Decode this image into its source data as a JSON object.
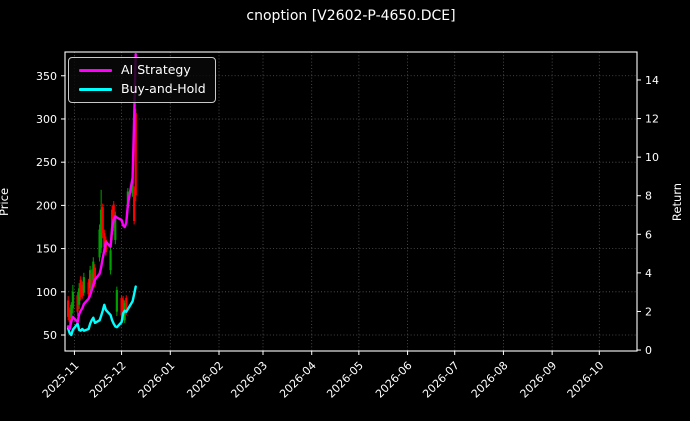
{
  "window": {
    "title": "cnoption [V2602-P-4650.DCE]"
  },
  "chart_data": {
    "type": "candlestick",
    "title": "cnoption [V2602-P-4650.DCE]",
    "background": "#000000",
    "text_color": "#ffffff",
    "grid": {
      "shown": true,
      "style": "dotted",
      "color": "#ffffff",
      "opacity": 0.35
    },
    "legend": {
      "position": "upper-left",
      "items": [
        {
          "label": "AI Strategy",
          "color": "#ff00ff"
        },
        {
          "label": "Buy-and-Hold",
          "color": "#00ffff"
        }
      ]
    },
    "left_axis": {
      "label": "Price",
      "ticks": [
        50,
        100,
        150,
        200,
        250,
        300,
        350
      ],
      "range": [
        31.5,
        377.5
      ]
    },
    "right_axis": {
      "label": "Return",
      "ticks": [
        0,
        2,
        4,
        6,
        8,
        10,
        12,
        14
      ],
      "range": [
        -0.05,
        15.45
      ]
    },
    "x_axis": {
      "rotation": 45,
      "range": [
        "2025-10-26",
        "2026-10-25"
      ],
      "tick_dates": [
        "2025-11-01",
        "2025-12-01",
        "2026-01-01",
        "2026-02-01",
        "2026-03-01",
        "2026-04-01",
        "2026-05-01",
        "2026-06-01",
        "2026-07-01",
        "2026-08-01",
        "2026-09-01",
        "2026-10-01"
      ],
      "tick_labels": [
        "2025-11",
        "2025-12",
        "2026-01",
        "2026-02",
        "2026-03",
        "2026-04",
        "2026-05",
        "2026-06",
        "2026-07",
        "2026-08",
        "2026-09",
        "2026-10"
      ]
    },
    "candles": {
      "up_color": "#ff0000",
      "down_color": "#00a000",
      "dates": [
        "2025-10-28",
        "2025-10-29",
        "2025-10-30",
        "2025-10-31",
        "2025-11-03",
        "2025-11-04",
        "2025-11-05",
        "2025-11-06",
        "2025-11-07",
        "2025-11-10",
        "2025-11-11",
        "2025-11-12",
        "2025-11-13",
        "2025-11-14",
        "2025-11-17",
        "2025-11-18",
        "2025-11-19",
        "2025-11-20",
        "2025-11-21",
        "2025-11-24",
        "2025-11-25",
        "2025-11-26",
        "2025-11-27",
        "2025-11-28",
        "2025-12-01",
        "2025-12-02",
        "2025-12-03",
        "2025-12-04",
        "2025-12-05",
        "2025-12-08",
        "2025-12-09",
        "2025-12-10"
      ],
      "ohlc": [
        [
          71,
          95,
          67,
          90
        ],
        [
          65,
          82,
          61,
          79
        ],
        [
          85,
          88,
          66,
          70
        ],
        [
          100,
          108,
          75,
          81
        ],
        [
          77,
          100,
          72,
          96
        ],
        [
          104,
          110,
          80,
          85
        ],
        [
          94,
          118,
          90,
          114
        ],
        [
          96,
          112,
          92,
          108
        ],
        [
          117,
          122,
          95,
          99
        ],
        [
          97,
          115,
          93,
          111
        ],
        [
          125,
          130,
          100,
          104
        ],
        [
          102,
          126,
          98,
          122
        ],
        [
          135,
          140,
          108,
          114
        ],
        [
          109,
          132,
          105,
          128
        ],
        [
          172,
          178,
          135,
          140
        ],
        [
          195,
          218,
          145,
          151
        ],
        [
          168,
          202,
          162,
          198
        ],
        [
          152,
          172,
          148,
          168
        ],
        [
          146,
          164,
          142,
          160
        ],
        [
          148,
          152,
          120,
          125
        ],
        [
          166,
          200,
          160,
          195
        ],
        [
          174,
          205,
          170,
          201
        ],
        [
          189,
          193,
          155,
          160
        ],
        [
          102,
          106,
          72,
          77
        ],
        [
          73,
          96,
          70,
          93
        ],
        [
          71,
          95,
          67,
          91
        ],
        [
          87,
          90,
          64,
          67
        ],
        [
          77,
          96,
          73,
          93
        ],
        [
          216,
          220,
          192,
          197
        ],
        [
          233,
          238,
          210,
          214
        ],
        [
          182,
          222,
          178,
          219
        ],
        [
          212,
          312,
          205,
          307
        ]
      ]
    },
    "series": [
      {
        "name": "AI Strategy",
        "axis": "price",
        "color": "#ff00ff",
        "values": [
          60,
          57,
          66,
          71,
          65,
          74,
          78,
          81,
          86,
          92,
          96,
          102,
          108,
          114,
          121,
          128,
          139,
          148,
          158,
          152,
          174,
          184,
          187,
          186,
          183,
          177,
          175,
          180,
          201,
          232,
          299,
          375
        ]
      },
      {
        "name": "Buy-and-Hold",
        "axis": "price",
        "color": "#00ffff",
        "values": [
          58,
          52,
          50,
          56,
          63,
          56,
          55,
          57,
          55,
          57,
          63,
          67,
          70,
          64,
          67,
          72,
          78,
          85,
          79,
          73,
          67,
          63,
          60,
          59,
          65,
          75,
          78,
          77,
          80,
          89,
          97,
          106
        ]
      }
    ]
  }
}
